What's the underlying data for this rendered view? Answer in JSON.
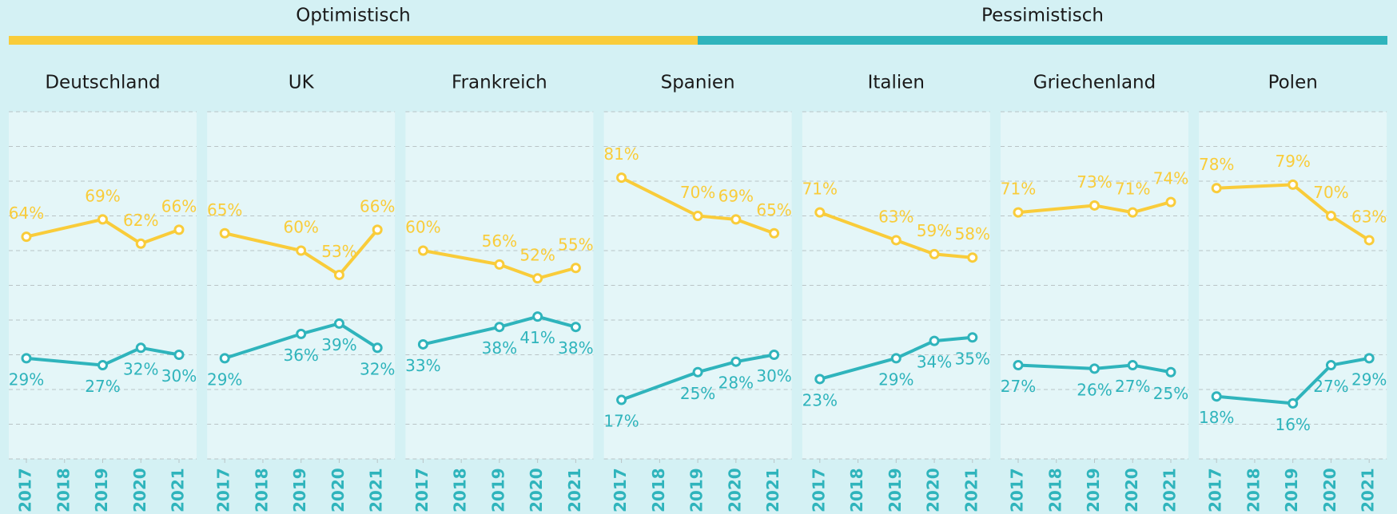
{
  "chart_data": {
    "type": "line",
    "series": [
      {
        "name": "Optimistisch",
        "color": "#f9cc3a"
      },
      {
        "name": "Pessimistisch",
        "color": "#2fb4bc"
      }
    ],
    "x": [
      2017,
      2019,
      2020,
      2021
    ],
    "xticks": [
      2017,
      2018,
      2019,
      2020,
      2021
    ],
    "ylim": [
      0,
      100
    ],
    "yticks": [
      0,
      10,
      20,
      30,
      40,
      50,
      60,
      70,
      80,
      90,
      100
    ],
    "grid": true,
    "panels": [
      {
        "title": "Deutschland",
        "values": [
          [
            64,
            69,
            62,
            66
          ],
          [
            29,
            27,
            32,
            30
          ]
        ],
        "value_labels": [
          [
            "64%",
            "69%",
            "62%",
            "66%"
          ],
          [
            "29%",
            "27%",
            "32%",
            "30%"
          ]
        ]
      },
      {
        "title": "UK",
        "values": [
          [
            65,
            60,
            53,
            66
          ],
          [
            29,
            36,
            39,
            32
          ]
        ],
        "value_labels": [
          [
            "65%",
            "60%",
            "53%",
            "66%"
          ],
          [
            "29%",
            "36%",
            "39%",
            "32%"
          ]
        ]
      },
      {
        "title": "Frankreich",
        "values": [
          [
            60,
            56,
            52,
            55
          ],
          [
            33,
            38,
            41,
            38
          ]
        ],
        "value_labels": [
          [
            "60%",
            "56%",
            "52%",
            "55%"
          ],
          [
            "33%",
            "38%",
            "41%",
            "38%"
          ]
        ]
      },
      {
        "title": "Spanien",
        "values": [
          [
            81,
            70,
            69,
            65
          ],
          [
            17,
            25,
            28,
            30
          ]
        ],
        "value_labels": [
          [
            "81%",
            "70%",
            "69%",
            "65%"
          ],
          [
            "17%",
            "25%",
            "28%",
            "30%"
          ]
        ]
      },
      {
        "title": "Italien",
        "values": [
          [
            71,
            63,
            59,
            58
          ],
          [
            23,
            29,
            34,
            35
          ]
        ],
        "value_labels": [
          [
            "71%",
            "63%",
            "59%",
            "58%"
          ],
          [
            "23%",
            "29%",
            "34%",
            "35%"
          ]
        ]
      },
      {
        "title": "Griechenland",
        "values": [
          [
            71,
            73,
            71,
            74
          ],
          [
            27,
            26,
            27,
            25
          ]
        ],
        "value_labels": [
          [
            "71%",
            "73%",
            "71%",
            "74%"
          ],
          [
            "27%",
            "26%",
            "27%",
            "25%"
          ]
        ]
      },
      {
        "title": "Polen",
        "values": [
          [
            78,
            79,
            70,
            63
          ],
          [
            18,
            16,
            27,
            29
          ]
        ],
        "value_labels": [
          [
            "78%",
            "79%",
            "70%",
            "63%"
          ],
          [
            "18%",
            "16%",
            "27%",
            "29%"
          ]
        ]
      }
    ]
  }
}
